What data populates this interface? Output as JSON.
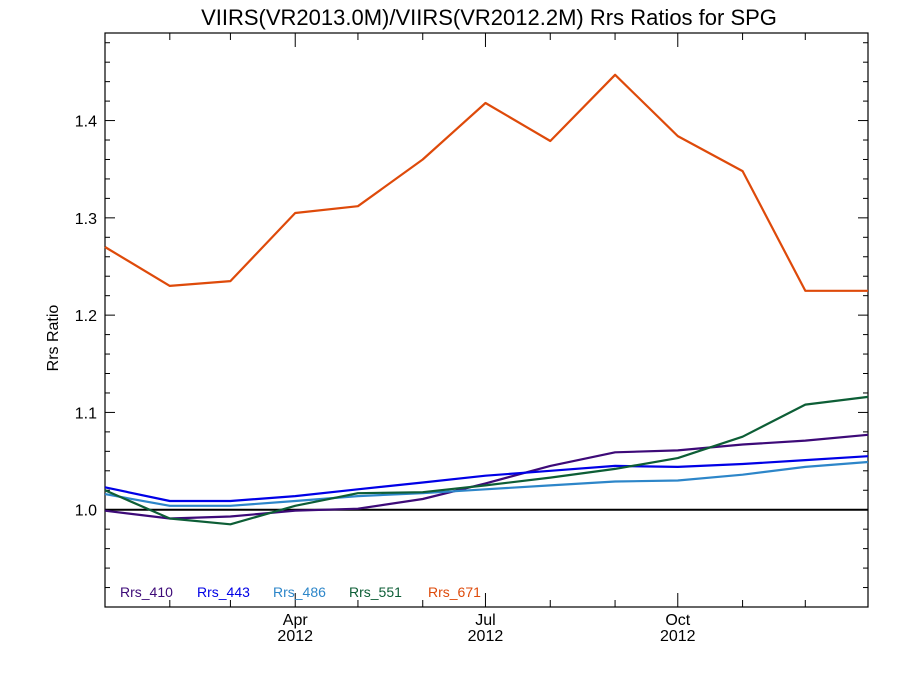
{
  "chart_data": {
    "type": "line",
    "title": "VIIRS(VR2013.0M)/VIIRS(VR2012.2M)  Rrs Ratios for SPG",
    "xlabel": "",
    "ylabel": "Rrs Ratio",
    "x": [
      "2012-01-01",
      "2012-02-01",
      "2012-03-01",
      "2012-04-01",
      "2012-05-01",
      "2012-06-01",
      "2012-07-01",
      "2012-08-01",
      "2012-09-01",
      "2012-10-01",
      "2012-11-01",
      "2012-12-01",
      "2012-12-31"
    ],
    "xlim": [
      "2012-01-01",
      "2012-12-31"
    ],
    "ylim": [
      0.9,
      1.49
    ],
    "x_major_ticks": [
      {
        "date": "2012-04-01",
        "label": "Apr",
        "sublabel": "2012"
      },
      {
        "date": "2012-07-01",
        "label": "Jul",
        "sublabel": "2012"
      },
      {
        "date": "2012-10-01",
        "label": "Oct",
        "sublabel": "2012"
      }
    ],
    "x_minor_ticks": [
      "2012-02-01",
      "2012-03-01",
      "2012-05-01",
      "2012-06-01",
      "2012-08-01",
      "2012-09-01",
      "2012-11-01",
      "2012-12-01"
    ],
    "y_ticks": [
      1.0,
      1.1,
      1.2,
      1.3,
      1.4
    ],
    "y_tick_labels": [
      "1.0",
      "1.1",
      "1.2",
      "1.3",
      "1.4"
    ],
    "reference_line": {
      "y": 1.0,
      "color": "#000000"
    },
    "legend_position": "bottom-left, inside plot area, in a single row",
    "grid": false,
    "series": [
      {
        "name": "Rrs_410",
        "color": "#3d0a78",
        "values": [
          0.999,
          0.991,
          0.993,
          0.999,
          1.001,
          1.011,
          1.027,
          1.045,
          1.059,
          1.061,
          1.067,
          1.071,
          1.077
        ]
      },
      {
        "name": "Rrs_443",
        "color": "#0000e6",
        "values": [
          1.023,
          1.009,
          1.009,
          1.014,
          1.021,
          1.028,
          1.035,
          1.04,
          1.045,
          1.044,
          1.047,
          1.051,
          1.055
        ]
      },
      {
        "name": "Rrs_486",
        "color": "#2d86c9",
        "values": [
          1.016,
          1.004,
          1.004,
          1.009,
          1.014,
          1.017,
          1.021,
          1.025,
          1.029,
          1.03,
          1.036,
          1.044,
          1.049
        ]
      },
      {
        "name": "Rrs_551",
        "color": "#0d5e36",
        "values": [
          1.02,
          0.991,
          0.985,
          1.004,
          1.017,
          1.018,
          1.025,
          1.033,
          1.042,
          1.053,
          1.075,
          1.108,
          1.116
        ]
      },
      {
        "name": "Rrs_671",
        "color": "#de4a0a",
        "values": [
          1.27,
          1.23,
          1.235,
          1.305,
          1.312,
          1.36,
          1.418,
          1.379,
          1.447,
          1.384,
          1.348,
          1.225,
          1.225
        ]
      }
    ]
  }
}
